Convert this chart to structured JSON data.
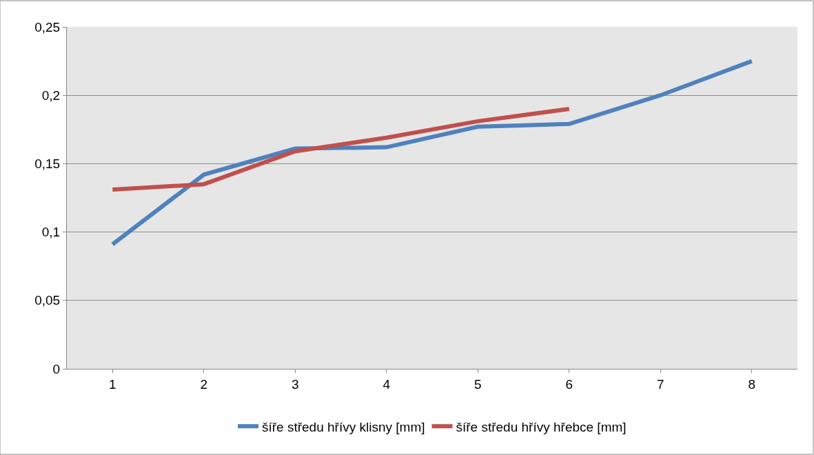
{
  "chart_data": {
    "type": "line",
    "categories": [
      "1",
      "2",
      "3",
      "4",
      "5",
      "6",
      "7",
      "8"
    ],
    "series": [
      {
        "name": "šíře středu hřívy klisny [mm]",
        "color": "#4f81bd",
        "values": [
          0.091,
          0.142,
          0.161,
          0.162,
          0.177,
          0.179,
          0.2,
          0.225
        ]
      },
      {
        "name": "šíře středu hřívy hřebce [mm]",
        "color": "#c0504d",
        "values": [
          0.131,
          0.135,
          0.159,
          0.169,
          0.181,
          0.19,
          null,
          null
        ]
      }
    ],
    "ylim": [
      0,
      0.25
    ],
    "yticks": [
      0,
      {
        "value": 0.05,
        "label": "0,05"
      },
      {
        "value": 0.1,
        "label": "0,1"
      },
      {
        "value": 0.15,
        "label": "0,15"
      },
      {
        "value": 0.2,
        "label": "0,2"
      },
      {
        "value": 0.25,
        "label": "0,25"
      }
    ],
    "grid": "y",
    "legend": "bottom",
    "marker": "none",
    "line_style": "solid"
  }
}
